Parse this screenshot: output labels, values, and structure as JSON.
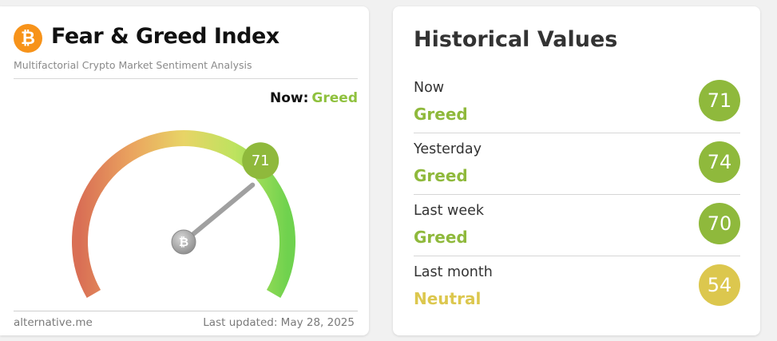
{
  "fear_greed": {
    "logo_symbol": "₿",
    "title": "Fear & Greed Index",
    "subtitle": "Multifactorial Crypto Market Sentiment Analysis",
    "now_label": "Now:",
    "now_classification": "Greed",
    "value": "71",
    "gauge_value": 71,
    "gauge_center_symbol": "₿",
    "footer_source": "alternative.me",
    "footer_updated": "Last updated: May 28, 2025",
    "colors": {
      "greed": "#8fc13e",
      "neutral": "#ddc74f",
      "logo": "#f7931a"
    }
  },
  "historical": {
    "title": "Historical Values",
    "rows": [
      {
        "period": "Now",
        "classification": "Greed",
        "value": "71",
        "color": "#8fb93c"
      },
      {
        "period": "Yesterday",
        "classification": "Greed",
        "value": "74",
        "color": "#8fb93c"
      },
      {
        "period": "Last week",
        "classification": "Greed",
        "value": "70",
        "color": "#8fb93c"
      },
      {
        "period": "Last month",
        "classification": "Neutral",
        "value": "54",
        "color": "#dcc74e"
      }
    ]
  }
}
